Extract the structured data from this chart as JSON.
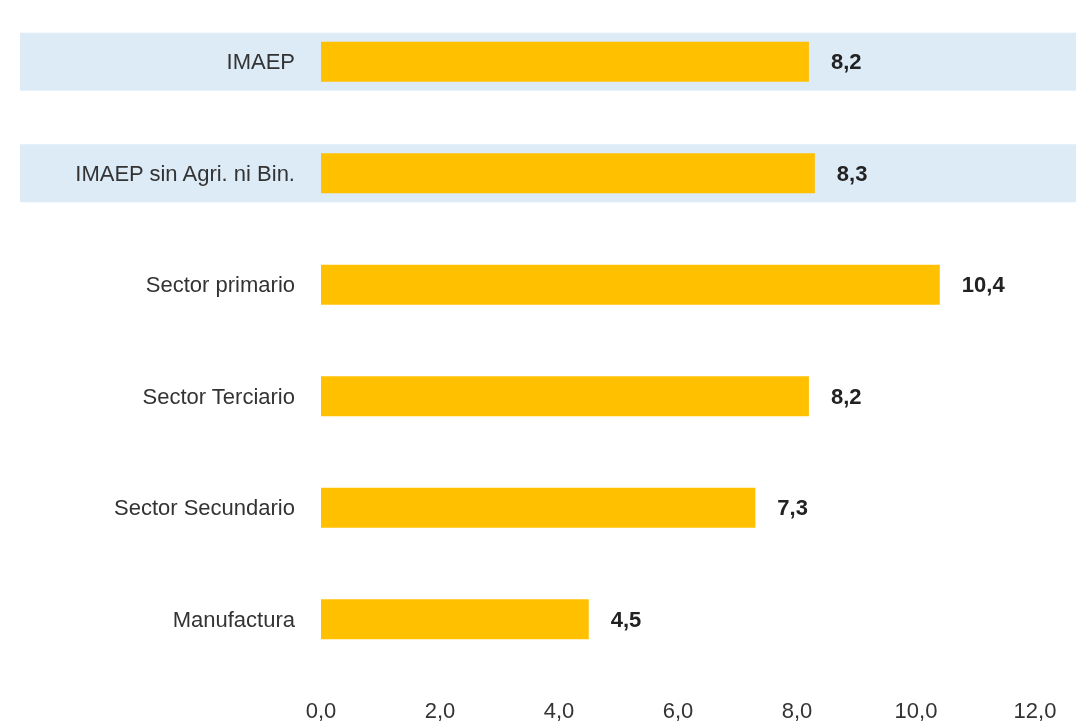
{
  "chart_data": {
    "type": "bar",
    "orientation": "horizontal",
    "categories": [
      "IMAEP",
      "IMAEP sin Agri. ni Bin.",
      "Sector primario",
      "Sector Terciario",
      "Sector Secundario",
      "Manufactura"
    ],
    "values": [
      8.2,
      8.3,
      10.4,
      8.2,
      7.3,
      4.5
    ],
    "value_labels": [
      "8,2",
      "8,3",
      "10,4",
      "8,2",
      "7,3",
      "4,5"
    ],
    "color": "#ffc000",
    "xlim": [
      0,
      12
    ],
    "xticks": [
      {
        "value": 0,
        "label": "0,0"
      },
      {
        "value": 2,
        "label": "2,0"
      },
      {
        "value": 4,
        "label": "4,0"
      },
      {
        "value": 6,
        "label": "6,0"
      },
      {
        "value": 8,
        "label": "8,0"
      },
      {
        "value": 10,
        "label": "10,0"
      },
      {
        "value": 12,
        "label": "12,0"
      }
    ],
    "bands": [
      {
        "axis": "y",
        "from": "IMAEP",
        "to": "IMAEP",
        "color": "#ddebf7"
      },
      {
        "axis": "y",
        "from": "IMAEP sin Agri. ni Bin.",
        "to": "IMAEP sin Agri. ni Bin.",
        "color": "#ddebf7"
      }
    ],
    "grid": false
  }
}
